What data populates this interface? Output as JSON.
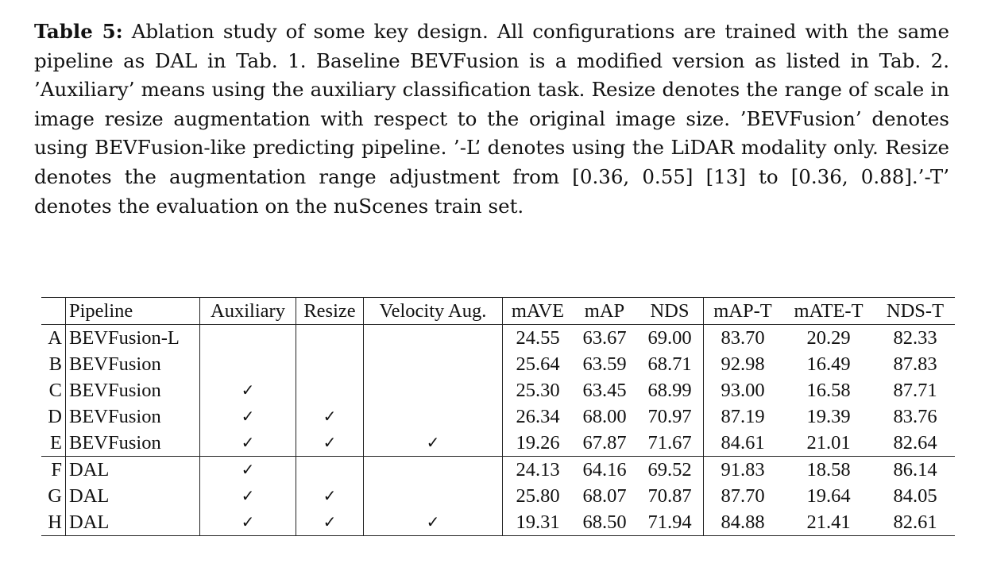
{
  "caption": {
    "label": "Table 5:",
    "text": "Ablation study of some key design. All configurations are trained with the same pipeline as DAL in Tab. 1. Baseline BEVFusion is a modified version as listed in Tab. 2. ’Auxiliary’ means using the auxiliary classification task. Resize denotes the range of scale in image resize augmentation with respect to the original image size. ’BEVFusion’ denotes using BEVFusion-like predicting pipeline. ’-L’ denotes using the LiDAR modality only. Resize denotes the augmentation range adjustment from [0.36, 0.55] [13] to [0.36, 0.88].’-T’ denotes the evaluation on the nuScenes train set."
  },
  "table": {
    "headers": {
      "id": "",
      "pipeline": "Pipeline",
      "auxiliary": "Auxiliary",
      "resize": "Resize",
      "velocity": "Velocity Aug.",
      "mave": "mAVE",
      "map": "mAP",
      "nds": "NDS",
      "mapt": "mAP-T",
      "matet": "mATE-T",
      "ndst": "NDS-T"
    },
    "check_symbol": "✓",
    "rows": [
      {
        "id": "A",
        "pipeline": "BEVFusion-L",
        "auxiliary": "",
        "resize": "",
        "velocity": "",
        "mave": "24.55",
        "map": "63.67",
        "nds": "69.00",
        "mapt": "83.70",
        "matet": "20.29",
        "ndst": "82.33"
      },
      {
        "id": "B",
        "pipeline": "BEVFusion",
        "auxiliary": "",
        "resize": "",
        "velocity": "",
        "mave": "25.64",
        "map": "63.59",
        "nds": "68.71",
        "mapt": "92.98",
        "matet": "16.49",
        "ndst": "87.83"
      },
      {
        "id": "C",
        "pipeline": "BEVFusion",
        "auxiliary": "✓",
        "resize": "",
        "velocity": "",
        "mave": "25.30",
        "map": "63.45",
        "nds": "68.99",
        "mapt": "93.00",
        "matet": "16.58",
        "ndst": "87.71"
      },
      {
        "id": "D",
        "pipeline": "BEVFusion",
        "auxiliary": "✓",
        "resize": "✓",
        "velocity": "",
        "mave": "26.34",
        "map": "68.00",
        "nds": "70.97",
        "mapt": "87.19",
        "matet": "19.39",
        "ndst": "83.76"
      },
      {
        "id": "E",
        "pipeline": "BEVFusion",
        "auxiliary": "✓",
        "resize": "✓",
        "velocity": "✓",
        "mave": "19.26",
        "map": "67.87",
        "nds": "71.67",
        "mapt": "84.61",
        "matet": "21.01",
        "ndst": "82.64"
      },
      {
        "id": "F",
        "pipeline": "DAL",
        "auxiliary": "✓",
        "resize": "",
        "velocity": "",
        "mave": "24.13",
        "map": "64.16",
        "nds": "69.52",
        "mapt": "91.83",
        "matet": "18.58",
        "ndst": "86.14"
      },
      {
        "id": "G",
        "pipeline": "DAL",
        "auxiliary": "✓",
        "resize": "✓",
        "velocity": "",
        "mave": "25.80",
        "map": "68.07",
        "nds": "70.87",
        "mapt": "87.70",
        "matet": "19.64",
        "ndst": "84.05"
      },
      {
        "id": "H",
        "pipeline": "DAL",
        "auxiliary": "✓",
        "resize": "✓",
        "velocity": "✓",
        "mave": "19.31",
        "map": "68.50",
        "nds": "71.94",
        "mapt": "84.88",
        "matet": "21.41",
        "ndst": "82.61"
      }
    ],
    "bold_cells": [
      "4.mave",
      "7.map",
      "7.nds"
    ]
  }
}
